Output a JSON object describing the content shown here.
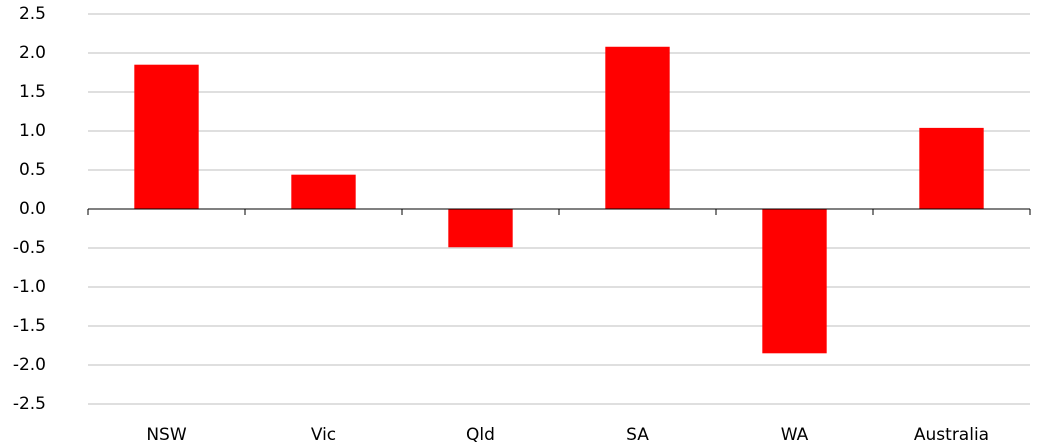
{
  "chart_data": {
    "type": "bar",
    "categories": [
      "NSW",
      "Vic",
      "Qld",
      "SA",
      "WA",
      "Australia"
    ],
    "values": [
      1.85,
      0.44,
      -0.49,
      2.08,
      -1.85,
      1.04
    ],
    "color": "#ff0000",
    "ylim": [
      -2.5,
      2.5
    ],
    "yticks": [
      -2.5,
      {
        "value": -2,
        "label": "-2.0"
      },
      -1.5,
      {
        "value": -1,
        "label": "-1.0"
      },
      -0.5,
      {
        "value": 0,
        "label": "0.0"
      },
      0.5,
      {
        "value": 1,
        "label": "1.0"
      },
      1.5,
      {
        "value": 2,
        "label": "2.0"
      },
      2.5
    ],
    "grid": true
  }
}
